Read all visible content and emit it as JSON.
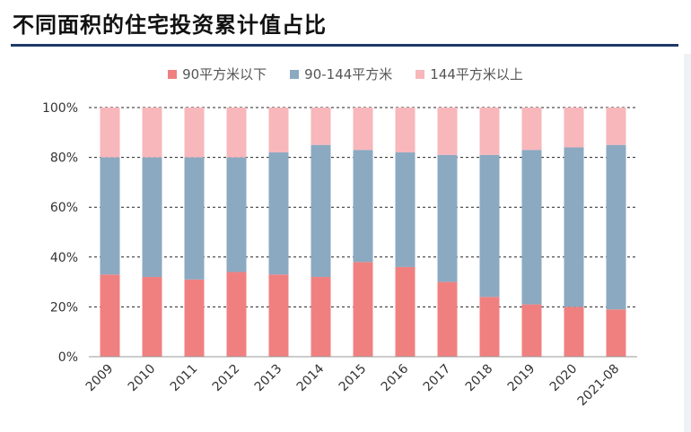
{
  "page_title": "不同面积的住宅投资累计值占比",
  "colors": {
    "title_rule": "#1f3a68",
    "series": [
      "#f08080",
      "#8ba9c1",
      "#f7b7bb"
    ],
    "axis": "#999999",
    "grid": "#222222"
  },
  "chart_data": {
    "type": "bar",
    "stacked": true,
    "percent": true,
    "categories": [
      "2009",
      "2010",
      "2011",
      "2012",
      "2013",
      "2014",
      "2015",
      "2016",
      "2017",
      "2018",
      "2019",
      "2020",
      "2021-08"
    ],
    "series": [
      {
        "name": "90平方米以下",
        "values": [
          33,
          32,
          31,
          34,
          33,
          32,
          38,
          36,
          30,
          24,
          21,
          20,
          19
        ]
      },
      {
        "name": "90-144平方米",
        "values": [
          47,
          48,
          49,
          46,
          49,
          53,
          45,
          46,
          51,
          57,
          62,
          64,
          66
        ]
      },
      {
        "name": "144平方米以上",
        "values": [
          20,
          20,
          20,
          20,
          18,
          15,
          17,
          18,
          19,
          19,
          17,
          16,
          15
        ]
      }
    ],
    "yticks": [
      "0%",
      "20%",
      "40%",
      "60%",
      "80%",
      "100%"
    ],
    "ylim": [
      0,
      100
    ],
    "grid": "dashed horizontal",
    "legend": "top-center"
  }
}
